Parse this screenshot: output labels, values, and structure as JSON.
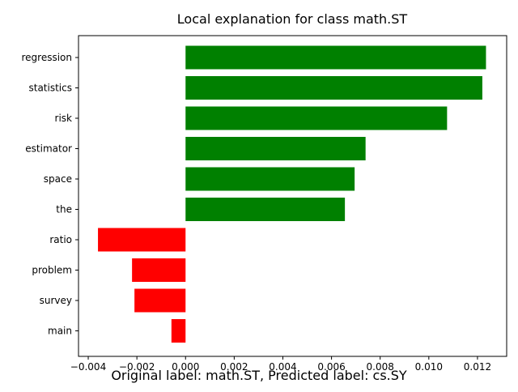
{
  "chart_data": {
    "type": "bar",
    "orientation": "horizontal",
    "title": "Local explanation for class math.ST",
    "caption": "Original label: math.ST, Predicted label: cs.SY",
    "xlabel": "",
    "ylabel": "",
    "categories": [
      "regression",
      "statistics",
      "risk",
      "estimator",
      "space",
      "the",
      "ratio",
      "problem",
      "survey",
      "main"
    ],
    "values": [
      0.01235,
      0.0122,
      0.01075,
      0.0074,
      0.00695,
      0.00655,
      -0.0036,
      -0.0022,
      -0.0021,
      -0.00058
    ],
    "xlim": [
      -0.0044,
      0.0132
    ],
    "xticks": [
      -0.004,
      -0.002,
      0.0,
      0.002,
      0.004,
      0.006,
      0.008,
      0.01,
      0.012
    ],
    "xtick_labels": [
      "−0.004",
      "−0.002",
      "0.000",
      "0.002",
      "0.004",
      "0.006",
      "0.008",
      "0.010",
      "0.012"
    ],
    "grid": false,
    "legend": "none",
    "colors": {
      "positive": "#008000",
      "negative": "#ff0000",
      "axis": "#000000"
    }
  }
}
